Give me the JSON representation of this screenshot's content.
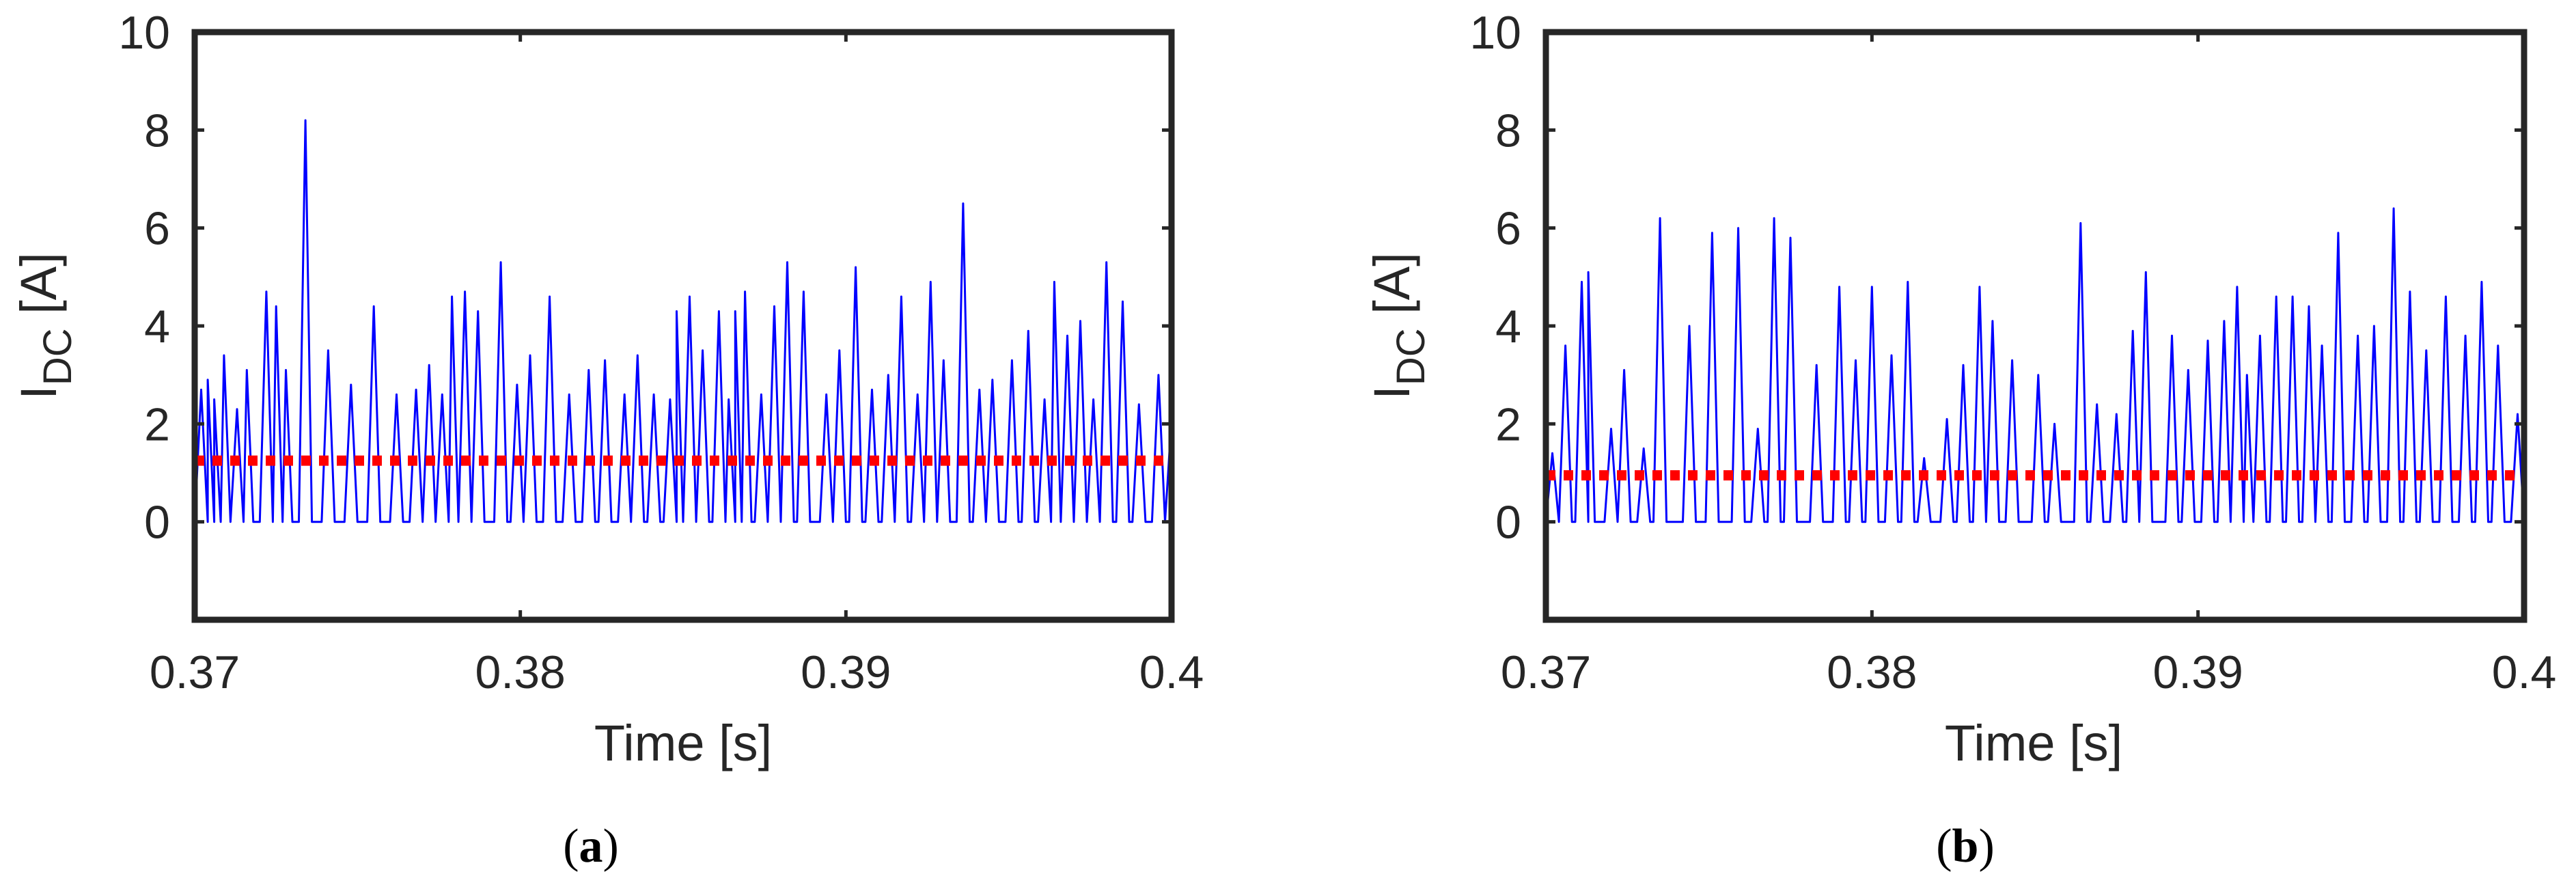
{
  "chart_data": [
    {
      "type": "line",
      "caption_letter": "a",
      "xlabel": "Time [s]",
      "ylabel_main": "I",
      "ylabel_sub": "DC",
      "ylabel_unit": " [A]",
      "xlim": [
        0.37,
        0.4
      ],
      "ylim": [
        -2,
        10
      ],
      "xticks": [
        0.37,
        0.38,
        0.39,
        0.4
      ],
      "xtick_labels": [
        "0.37",
        "0.38",
        "0.39",
        "0.4"
      ],
      "yticks": [
        0,
        2,
        4,
        6,
        8,
        10
      ],
      "ytick_labels": [
        "0",
        "2",
        "4",
        "6",
        "8",
        "10"
      ],
      "pulse_width_s": 0.0004,
      "series": [
        {
          "name": "I_DC",
          "color": "#0000FF",
          "peaks": [
            [
              0.3702,
              2.7
            ],
            [
              0.3704,
              2.9
            ],
            [
              0.3706,
              2.5
            ],
            [
              0.3709,
              3.4
            ],
            [
              0.3713,
              2.3
            ],
            [
              0.3716,
              3.1
            ],
            [
              0.3722,
              4.7
            ],
            [
              0.3725,
              4.4
            ],
            [
              0.3728,
              3.1
            ],
            [
              0.3734,
              8.2
            ],
            [
              0.3741,
              3.5
            ],
            [
              0.3748,
              2.8
            ],
            [
              0.3755,
              4.4
            ],
            [
              0.3762,
              2.6
            ],
            [
              0.3768,
              2.7
            ],
            [
              0.3772,
              3.2
            ],
            [
              0.3776,
              2.6
            ],
            [
              0.3779,
              4.6
            ],
            [
              0.3783,
              4.7
            ],
            [
              0.3787,
              4.3
            ],
            [
              0.3794,
              5.3
            ],
            [
              0.3799,
              2.8
            ],
            [
              0.3803,
              3.4
            ],
            [
              0.3809,
              4.6
            ],
            [
              0.3815,
              2.6
            ],
            [
              0.3821,
              3.1
            ],
            [
              0.3826,
              3.3
            ],
            [
              0.3832,
              2.6
            ],
            [
              0.3836,
              3.4
            ],
            [
              0.3841,
              2.6
            ],
            [
              0.3846,
              2.5
            ],
            [
              0.3848,
              4.3
            ],
            [
              0.3852,
              4.6
            ],
            [
              0.3856,
              3.5
            ],
            [
              0.3861,
              4.3
            ],
            [
              0.3864,
              2.5
            ],
            [
              0.3866,
              4.3
            ],
            [
              0.3869,
              4.7
            ],
            [
              0.3874,
              2.6
            ],
            [
              0.3878,
              4.4
            ],
            [
              0.3882,
              5.3
            ],
            [
              0.3887,
              4.7
            ],
            [
              0.3894,
              2.6
            ],
            [
              0.3898,
              3.5
            ],
            [
              0.3903,
              5.2
            ],
            [
              0.3908,
              2.7
            ],
            [
              0.3913,
              3.0
            ],
            [
              0.3917,
              4.6
            ],
            [
              0.3922,
              2.6
            ],
            [
              0.3926,
              4.9
            ],
            [
              0.393,
              3.3
            ],
            [
              0.3936,
              6.5
            ],
            [
              0.3941,
              2.7
            ],
            [
              0.3945,
              2.9
            ],
            [
              0.3951,
              3.3
            ],
            [
              0.3956,
              3.9
            ],
            [
              0.3961,
              2.5
            ],
            [
              0.3964,
              4.9
            ],
            [
              0.3968,
              3.8
            ],
            [
              0.3972,
              4.1
            ],
            [
              0.3976,
              2.5
            ],
            [
              0.398,
              5.3
            ],
            [
              0.3985,
              4.5
            ],
            [
              0.399,
              2.4
            ],
            [
              0.3996,
              3.0
            ],
            [
              0.4,
              2.1
            ]
          ]
        },
        {
          "name": "mean",
          "color": "#FF0000",
          "value": 1.25
        }
      ]
    },
    {
      "type": "line",
      "caption_letter": "b",
      "xlabel": "Time [s]",
      "ylabel_main": "I",
      "ylabel_sub": "DC",
      "ylabel_unit": " [A]",
      "xlim": [
        0.37,
        0.4
      ],
      "ylim": [
        -2,
        10
      ],
      "xticks": [
        0.37,
        0.38,
        0.39,
        0.4
      ],
      "xtick_labels": [
        "0.37",
        "0.38",
        "0.39",
        "0.4"
      ],
      "yticks": [
        0,
        2,
        4,
        6,
        8,
        10
      ],
      "ytick_labels": [
        "0",
        "2",
        "4",
        "6",
        "8",
        "10"
      ],
      "pulse_width_s": 0.0004,
      "series": [
        {
          "name": "I_DC",
          "color": "#0000FF",
          "peaks": [
            [
              0.3702,
              1.4
            ],
            [
              0.3706,
              3.6
            ],
            [
              0.3711,
              4.9
            ],
            [
              0.3713,
              5.1
            ],
            [
              0.372,
              1.9
            ],
            [
              0.3724,
              3.1
            ],
            [
              0.373,
              1.5
            ],
            [
              0.3735,
              6.2
            ],
            [
              0.3744,
              4.0
            ],
            [
              0.3751,
              5.9
            ],
            [
              0.3759,
              6.0
            ],
            [
              0.3765,
              1.9
            ],
            [
              0.377,
              6.2
            ],
            [
              0.3775,
              5.8
            ],
            [
              0.3783,
              3.2
            ],
            [
              0.379,
              4.8
            ],
            [
              0.3795,
              3.3
            ],
            [
              0.38,
              4.8
            ],
            [
              0.3806,
              3.4
            ],
            [
              0.3811,
              4.9
            ],
            [
              0.3816,
              1.3
            ],
            [
              0.3823,
              2.1
            ],
            [
              0.3828,
              3.2
            ],
            [
              0.3833,
              4.8
            ],
            [
              0.3837,
              4.1
            ],
            [
              0.3843,
              3.3
            ],
            [
              0.3851,
              3.0
            ],
            [
              0.3856,
              2.0
            ],
            [
              0.3864,
              6.1
            ],
            [
              0.3869,
              2.4
            ],
            [
              0.3875,
              2.2
            ],
            [
              0.388,
              3.9
            ],
            [
              0.3884,
              5.1
            ],
            [
              0.3892,
              3.8
            ],
            [
              0.3897,
              3.1
            ],
            [
              0.3903,
              3.7
            ],
            [
              0.3908,
              4.1
            ],
            [
              0.3912,
              4.8
            ],
            [
              0.3915,
              3.0
            ],
            [
              0.3919,
              3.8
            ],
            [
              0.3924,
              4.6
            ],
            [
              0.3929,
              4.6
            ],
            [
              0.3934,
              4.4
            ],
            [
              0.3938,
              3.6
            ],
            [
              0.3943,
              5.9
            ],
            [
              0.3949,
              3.8
            ],
            [
              0.3954,
              4.0
            ],
            [
              0.396,
              6.4
            ],
            [
              0.3965,
              4.7
            ],
            [
              0.397,
              3.5
            ],
            [
              0.3976,
              4.6
            ],
            [
              0.3982,
              3.8
            ],
            [
              0.3987,
              4.9
            ],
            [
              0.3992,
              3.6
            ],
            [
              0.3998,
              2.2
            ],
            [
              0.4,
              2.4
            ]
          ]
        },
        {
          "name": "mean",
          "color": "#FF0000",
          "value": 0.95
        }
      ]
    }
  ]
}
